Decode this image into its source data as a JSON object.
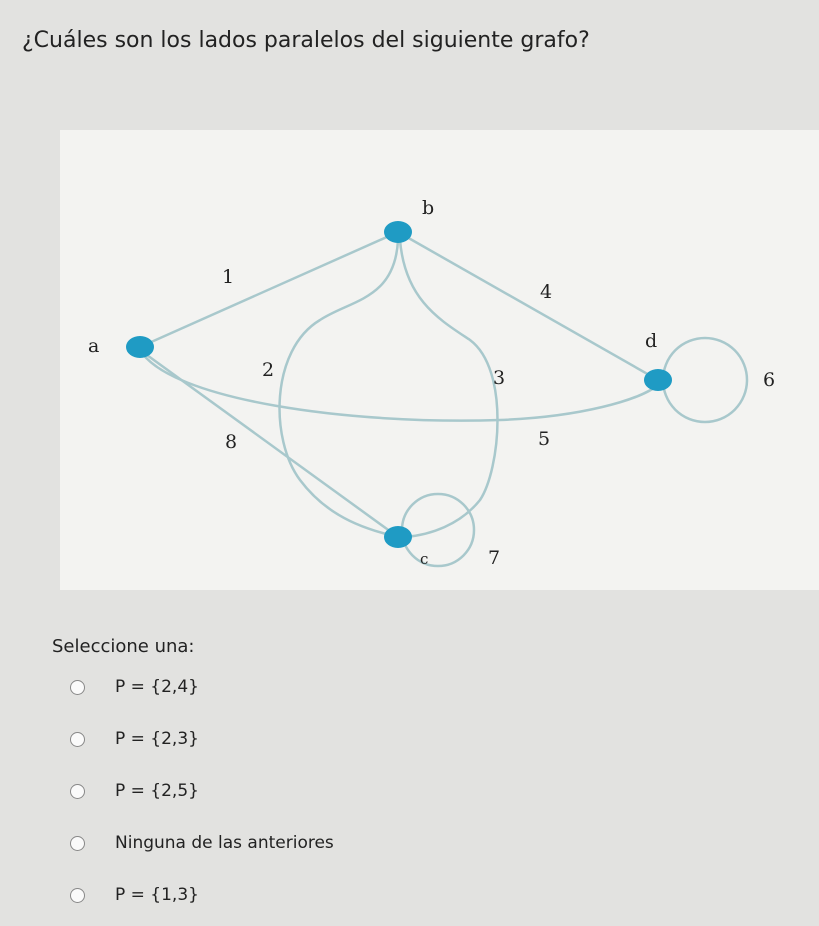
{
  "question": "¿Cuáles son los lados paralelos del siguiente grafo?",
  "nodes": [
    "b",
    "a",
    "d",
    "c"
  ],
  "edges": [
    "1",
    "4",
    "2",
    "3",
    "5",
    "6",
    "7",
    "8"
  ],
  "prompt": "Seleccione una:",
  "options": [
    "P = {2,4}",
    "P = {2,3}",
    "P = {2,5}",
    "Ninguna de las anteriores",
    "P = {1,3}"
  ]
}
